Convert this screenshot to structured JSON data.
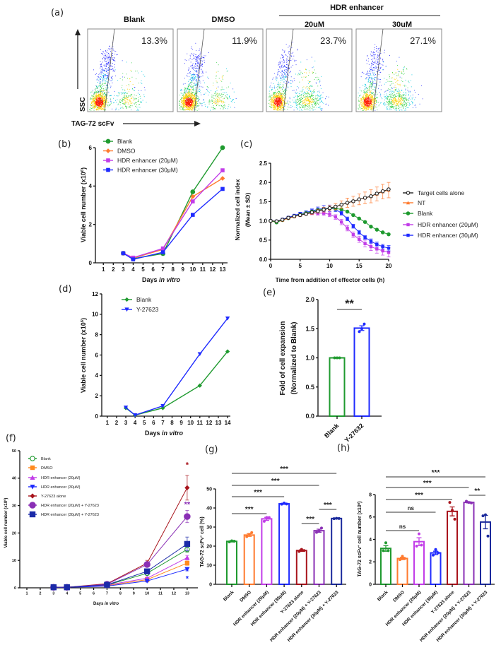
{
  "chart_data": [
    {
      "type": "scatter",
      "panel": "(a)",
      "group_label": "HDR enhancer",
      "xlabel": "TAG-72 scFv",
      "ylabel": "SSC",
      "plots": [
        {
          "title": "Blank",
          "percent": "13.3%"
        },
        {
          "title": "DMSO",
          "percent": "11.9%"
        },
        {
          "title": "20uM",
          "percent": "23.7%"
        },
        {
          "title": "30uM",
          "percent": "27.1%"
        }
      ]
    },
    {
      "type": "line",
      "panel": "(b)",
      "xlabel": [
        {
          "t": "Days "
        },
        {
          "t": "in vitro",
          "it": true
        }
      ],
      "ylabel": [
        {
          "t": "Viable cell number (x10"
        },
        {
          "t": "6",
          "sup": true
        },
        {
          "t": ")"
        }
      ],
      "xlim": [
        0.2,
        13.5
      ],
      "ylim": [
        0,
        6
      ],
      "xticks": [
        "1",
        "2",
        "3",
        "4",
        "5",
        "6",
        "7",
        "8",
        "9",
        "10",
        "11",
        "12",
        "13"
      ],
      "yticks": [
        "0",
        "2",
        "4",
        "6"
      ],
      "x": [
        3,
        4,
        7,
        10,
        13
      ],
      "series": [
        {
          "name": "Blank",
          "color": "#1f9a2f",
          "marker": "circle",
          "values": [
            0.5,
            0.22,
            0.48,
            3.7,
            6.0
          ]
        },
        {
          "name": "DMSO",
          "color": "#ff7a2e",
          "marker": "diamond",
          "values": [
            0.5,
            0.25,
            0.7,
            3.45,
            4.4
          ]
        },
        {
          "name": "HDR enhancer (20μM)",
          "color": "#c23de8",
          "marker": "square",
          "values": [
            0.5,
            0.27,
            0.75,
            3.2,
            4.82
          ]
        },
        {
          "name": "HDR enhancer (30μM)",
          "color": "#1f2bff",
          "marker": "square",
          "values": [
            0.5,
            0.18,
            0.55,
            2.5,
            3.85
          ]
        }
      ],
      "legend": "top-left"
    },
    {
      "type": "line",
      "panel": "(c)",
      "xlabel": [
        {
          "t": "Time from addition of effector cells (h)"
        }
      ],
      "ylabel_lines": [
        "Normalized cell index",
        "(Mean ± SD)"
      ],
      "xlim": [
        0,
        20
      ],
      "ylim": [
        0,
        2.5
      ],
      "xticks": [
        "0",
        "5",
        "10",
        "15",
        "20"
      ],
      "yticks": [
        "0.0",
        "0.5",
        "1.0",
        "1.5",
        "2.0",
        "2.5"
      ],
      "x": [
        0,
        1,
        2,
        3,
        4,
        5,
        6,
        7,
        8,
        9,
        10,
        11,
        12,
        13,
        14,
        15,
        16,
        17,
        18,
        19,
        20
      ],
      "series": [
        {
          "name": "Target cells alone",
          "color": "#222222",
          "marker": "open-circle",
          "values": [
            1.0,
            0.99,
            1.03,
            1.08,
            1.12,
            1.15,
            1.18,
            1.22,
            1.25,
            1.29,
            1.33,
            1.37,
            1.42,
            1.47,
            1.51,
            1.56,
            1.6,
            1.64,
            1.71,
            1.77,
            1.82
          ]
        },
        {
          "name": "NT",
          "color": "#ff7a2e",
          "marker": "triangle",
          "values": [
            1.0,
            0.99,
            1.02,
            1.07,
            1.11,
            1.15,
            1.18,
            1.21,
            1.25,
            1.29,
            1.33,
            1.37,
            1.42,
            1.47,
            1.51,
            1.56,
            1.6,
            1.64,
            1.7,
            1.76,
            1.8
          ],
          "sd": [
            0,
            0.01,
            0.01,
            0.02,
            0.02,
            0.03,
            0.03,
            0.04,
            0.05,
            0.06,
            0.07,
            0.08,
            0.1,
            0.12,
            0.13,
            0.14,
            0.15,
            0.17,
            0.18,
            0.19,
            0.2
          ]
        },
        {
          "name": "Blank",
          "color": "#1f9a2f",
          "marker": "circle",
          "values": [
            1.0,
            0.96,
            1.02,
            1.07,
            1.12,
            1.16,
            1.2,
            1.24,
            1.28,
            1.3,
            1.33,
            1.32,
            1.3,
            1.24,
            1.15,
            1.06,
            0.97,
            0.85,
            0.77,
            0.7,
            0.65
          ]
        },
        {
          "name": "HDR enhancer (20μM)",
          "color": "#c23de8",
          "marker": "square",
          "values": [
            1.0,
            0.98,
            1.03,
            1.08,
            1.12,
            1.15,
            1.18,
            1.2,
            1.2,
            1.2,
            1.17,
            1.1,
            0.97,
            0.81,
            0.64,
            0.52,
            0.41,
            0.33,
            0.27,
            0.22,
            0.18
          ],
          "sd": [
            0,
            0.01,
            0.01,
            0.02,
            0.02,
            0.03,
            0.03,
            0.04,
            0.05,
            0.06,
            0.06,
            0.06,
            0.07,
            0.07,
            0.07,
            0.08,
            0.09,
            0.1,
            0.11,
            0.11,
            0.12
          ]
        },
        {
          "name": "HDR enhancer (30μM)",
          "color": "#1f2bff",
          "marker": "square",
          "values": [
            1.0,
            0.99,
            1.04,
            1.09,
            1.14,
            1.19,
            1.22,
            1.26,
            1.3,
            1.32,
            1.33,
            1.3,
            1.2,
            1.05,
            0.86,
            0.7,
            0.57,
            0.47,
            0.39,
            0.33,
            0.29
          ],
          "sd": [
            0,
            0.01,
            0.01,
            0.02,
            0.02,
            0.03,
            0.04,
            0.05,
            0.06,
            0.08,
            0.08,
            0.06,
            0.05,
            0.05,
            0.05,
            0.05,
            0.05,
            0.06,
            0.06,
            0.06,
            0.07
          ]
        }
      ],
      "legend": "right"
    },
    {
      "type": "line",
      "panel": "(d)",
      "xlabel": [
        {
          "t": "Days "
        },
        {
          "t": "in vitro",
          "it": true
        }
      ],
      "ylabel": [
        {
          "t": "Viable cell number (x10"
        },
        {
          "t": "6",
          "sup": true
        },
        {
          "t": ")"
        }
      ],
      "xlim": [
        0.4,
        14.3
      ],
      "ylim": [
        0,
        12
      ],
      "xticks": [
        "1",
        "2",
        "3",
        "4",
        "5",
        "6",
        "7",
        "8",
        "9",
        "10",
        "11",
        "12",
        "13",
        "14"
      ],
      "yticks": [
        "0",
        "2",
        "4",
        "6",
        "8",
        "10",
        "12"
      ],
      "x": [
        3,
        4,
        7,
        11,
        14
      ],
      "series": [
        {
          "name": "Blank",
          "color": "#1f9a2f",
          "marker": "diamond",
          "values": [
            0.8,
            0.1,
            0.8,
            3.0,
            6.35
          ]
        },
        {
          "name": "Y-27623",
          "color": "#1f2bff",
          "marker": "triangle-down",
          "values": [
            0.85,
            0.1,
            1.0,
            6.1,
            9.6
          ]
        }
      ],
      "legend": "top-left"
    },
    {
      "type": "bar",
      "panel": "(e)",
      "ylabel_lines": [
        "Fold of cell expansion",
        "(Normalized to Blank)"
      ],
      "ylim": [
        0,
        2.0
      ],
      "yticks": [
        "0.0",
        "0.5",
        "1.0",
        "1.5",
        "2.0"
      ],
      "categories": [
        "Blank",
        "Y-27632"
      ],
      "values": [
        1.0,
        1.51
      ],
      "sem": [
        0,
        0.04
      ],
      "points": [
        [
          1.0,
          1.0,
          1.0
        ],
        [
          1.45,
          1.5,
          1.58
        ]
      ],
      "colors": [
        "#1f9a2f",
        "#1f2bff"
      ],
      "brackets": [
        {
          "from": 0,
          "to": 1,
          "label": "**"
        }
      ]
    },
    {
      "type": "line",
      "panel": "(f)",
      "xlabel": [
        {
          "t": "Days "
        },
        {
          "t": "in vitro",
          "it": true
        }
      ],
      "ylabel": [
        {
          "t": "Viable cell number (x10"
        },
        {
          "t": "6",
          "sup": true
        },
        {
          "t": ")"
        }
      ],
      "xlim": [
        0.47,
        13.8
      ],
      "ylim": [
        0,
        50
      ],
      "xticks": [
        "1",
        "2",
        "3",
        "4",
        "5",
        "6",
        "7",
        "8",
        "9",
        "10",
        "11",
        "12",
        "13"
      ],
      "yticks": [
        "0",
        "10",
        "20",
        "30",
        "40",
        "50"
      ],
      "x": [
        3,
        4,
        7,
        10,
        13
      ],
      "series": [
        {
          "name": "Blank",
          "color": "#1f9a2f",
          "marker": "open-circle",
          "values": [
            0.2,
            0.2,
            1.0,
            5.3,
            14.0
          ],
          "sem": [
            0,
            0,
            0.2,
            0.5,
            1.0
          ]
        },
        {
          "name": "DMSO",
          "color": "#ff8a1e",
          "marker": "square",
          "values": [
            0.2,
            0.2,
            0.8,
            3.0,
            9.0
          ],
          "sem": [
            0,
            0,
            0.2,
            0.4,
            0.8
          ]
        },
        {
          "name": "HDR enhancer (20μM)",
          "color": "#c23de8",
          "marker": "triangle",
          "values": [
            0.2,
            0.2,
            1.0,
            3.5,
            11.0
          ],
          "sem": [
            0,
            0,
            0.2,
            0.4,
            0.8
          ]
        },
        {
          "name": "HDR enhancer (30μM)",
          "color": "#1f2bff",
          "marker": "triangle-down",
          "values": [
            0.2,
            0.2,
            0.6,
            2.5,
            6.8
          ],
          "sem": [
            0,
            0,
            0.2,
            0.4,
            0.6
          ]
        },
        {
          "name": "Y-27623 alone",
          "color": "#a8141c",
          "marker": "diamond",
          "values": [
            0.2,
            0.2,
            1.5,
            9.0,
            36.5
          ],
          "sem": [
            0,
            0,
            0.3,
            1.0,
            4.5
          ]
        },
        {
          "name": "HDR enhancer (20μM) + Y-27623",
          "color": "#8a2fb5",
          "marker": "circle",
          "values": [
            0.2,
            0.2,
            1.3,
            8.5,
            26.0
          ],
          "sem": [
            0,
            0,
            0.3,
            0.8,
            2.2
          ]
        },
        {
          "name": "HDR enhancer (30μM) + Y-27623",
          "color": "#1b2aa8",
          "marker": "square",
          "values": [
            0.2,
            0.2,
            1.1,
            6.0,
            16.0
          ],
          "sem": [
            0,
            0,
            0.3,
            0.7,
            2.5
          ]
        }
      ],
      "annotations": [
        {
          "x": 13,
          "y": 44,
          "text": "*",
          "color": "#a8141c"
        },
        {
          "x": 13,
          "y": 29.5,
          "text": "**",
          "color": "#8a2fb5"
        },
        {
          "x": 13,
          "y": 2.5,
          "text": "*",
          "color": "#1f2bff"
        }
      ],
      "legend": "top-left"
    },
    {
      "type": "bar",
      "panel": "(g)",
      "ylabel": [
        {
          "t": "TAG-72 scFv"
        },
        {
          "t": "+",
          "sup": true
        },
        {
          "t": " cell (%)"
        }
      ],
      "ylim": [
        0,
        50
      ],
      "yticks": [
        "0",
        "10",
        "20",
        "30",
        "40",
        "50"
      ],
      "categories": [
        "Blank",
        "DMSO",
        "HDR enhancer (20μM)",
        "HDR enhancer (30μM)",
        "Y-27623 alone",
        "HDR enhancer (20μM) + Y-27623",
        "HDR enhancer (30μM) + Y-27623"
      ],
      "values": [
        22.5,
        25.8,
        34.3,
        42.2,
        17.7,
        28.1,
        34.5
      ],
      "sem": [
        0.3,
        0.7,
        0.8,
        0.3,
        0.4,
        0.8,
        0.1
      ],
      "points": [
        [
          22.2,
          22.8,
          22.6
        ],
        [
          25.0,
          26.2,
          27.1
        ],
        [
          33.0,
          35.0,
          35.0
        ],
        [
          42.0,
          42.6,
          42.1
        ],
        [
          17.2,
          18.3,
          17.7
        ],
        [
          27.2,
          28.0,
          29.5
        ],
        [
          34.4,
          34.6,
          34.5
        ]
      ],
      "colors": [
        "#1f9a2f",
        "#ff7a2e",
        "#c23de8",
        "#1f2bff",
        "#a8141c",
        "#8a2fb5",
        "#1b2a9c"
      ],
      "brackets": [
        {
          "from": 0,
          "to": 6,
          "label": "***"
        },
        {
          "from": 0,
          "to": 5,
          "label": "***"
        },
        {
          "from": 0,
          "to": 3,
          "label": "***"
        },
        {
          "from": 0,
          "to": 2,
          "label": "***"
        },
        {
          "from": 4,
          "to": 5,
          "label": "***"
        },
        {
          "from": 5,
          "to": 6,
          "label": "***"
        }
      ]
    },
    {
      "type": "bar",
      "panel": "(h)",
      "ylabel": [
        {
          "t": "TAG-72 scFv"
        },
        {
          "t": "+",
          "sup": true
        },
        {
          "t": " cell number (x10"
        },
        {
          "t": "6",
          "sup": true
        },
        {
          "t": ")"
        }
      ],
      "ylim": [
        0,
        8
      ],
      "yticks": [
        "0",
        "2",
        "4",
        "6",
        "8"
      ],
      "categories": [
        "Blank",
        "DMSO",
        "HDR enhancer (20μM)",
        "HDR enhancer (30μM)",
        "Y-27623 alone",
        "HDR enhancer (20μM) + Y-27623",
        "HDR enhancer (30μM) + Y-27623"
      ],
      "values": [
        3.2,
        2.3,
        3.8,
        2.8,
        6.5,
        7.3,
        5.55
      ],
      "sem": [
        0.25,
        0.1,
        0.35,
        0.15,
        0.4,
        0.05,
        0.6
      ],
      "points": [
        [
          3.0,
          3.7,
          3.0
        ],
        [
          2.2,
          2.5,
          2.3
        ],
        [
          3.4,
          4.5,
          3.5
        ],
        [
          2.6,
          3.1,
          2.8
        ],
        [
          7.3,
          6.6,
          5.8
        ],
        [
          7.4,
          7.3,
          7.25
        ],
        [
          6.1,
          6.2,
          4.3
        ]
      ],
      "colors": [
        "#1f9a2f",
        "#ff7a2e",
        "#c23de8",
        "#1f2bff",
        "#a8141c",
        "#8a2fb5",
        "#1b2a9c"
      ],
      "brackets": [
        {
          "from": 0,
          "to": 6,
          "label": "***"
        },
        {
          "from": 0,
          "to": 5,
          "label": "***"
        },
        {
          "from": 5,
          "to": 6,
          "label": "**"
        },
        {
          "from": 0,
          "to": 4,
          "label": "***"
        },
        {
          "from": 0,
          "to": 3,
          "label": "ns"
        },
        {
          "from": 0,
          "to": 2,
          "label": "ns"
        }
      ]
    }
  ]
}
